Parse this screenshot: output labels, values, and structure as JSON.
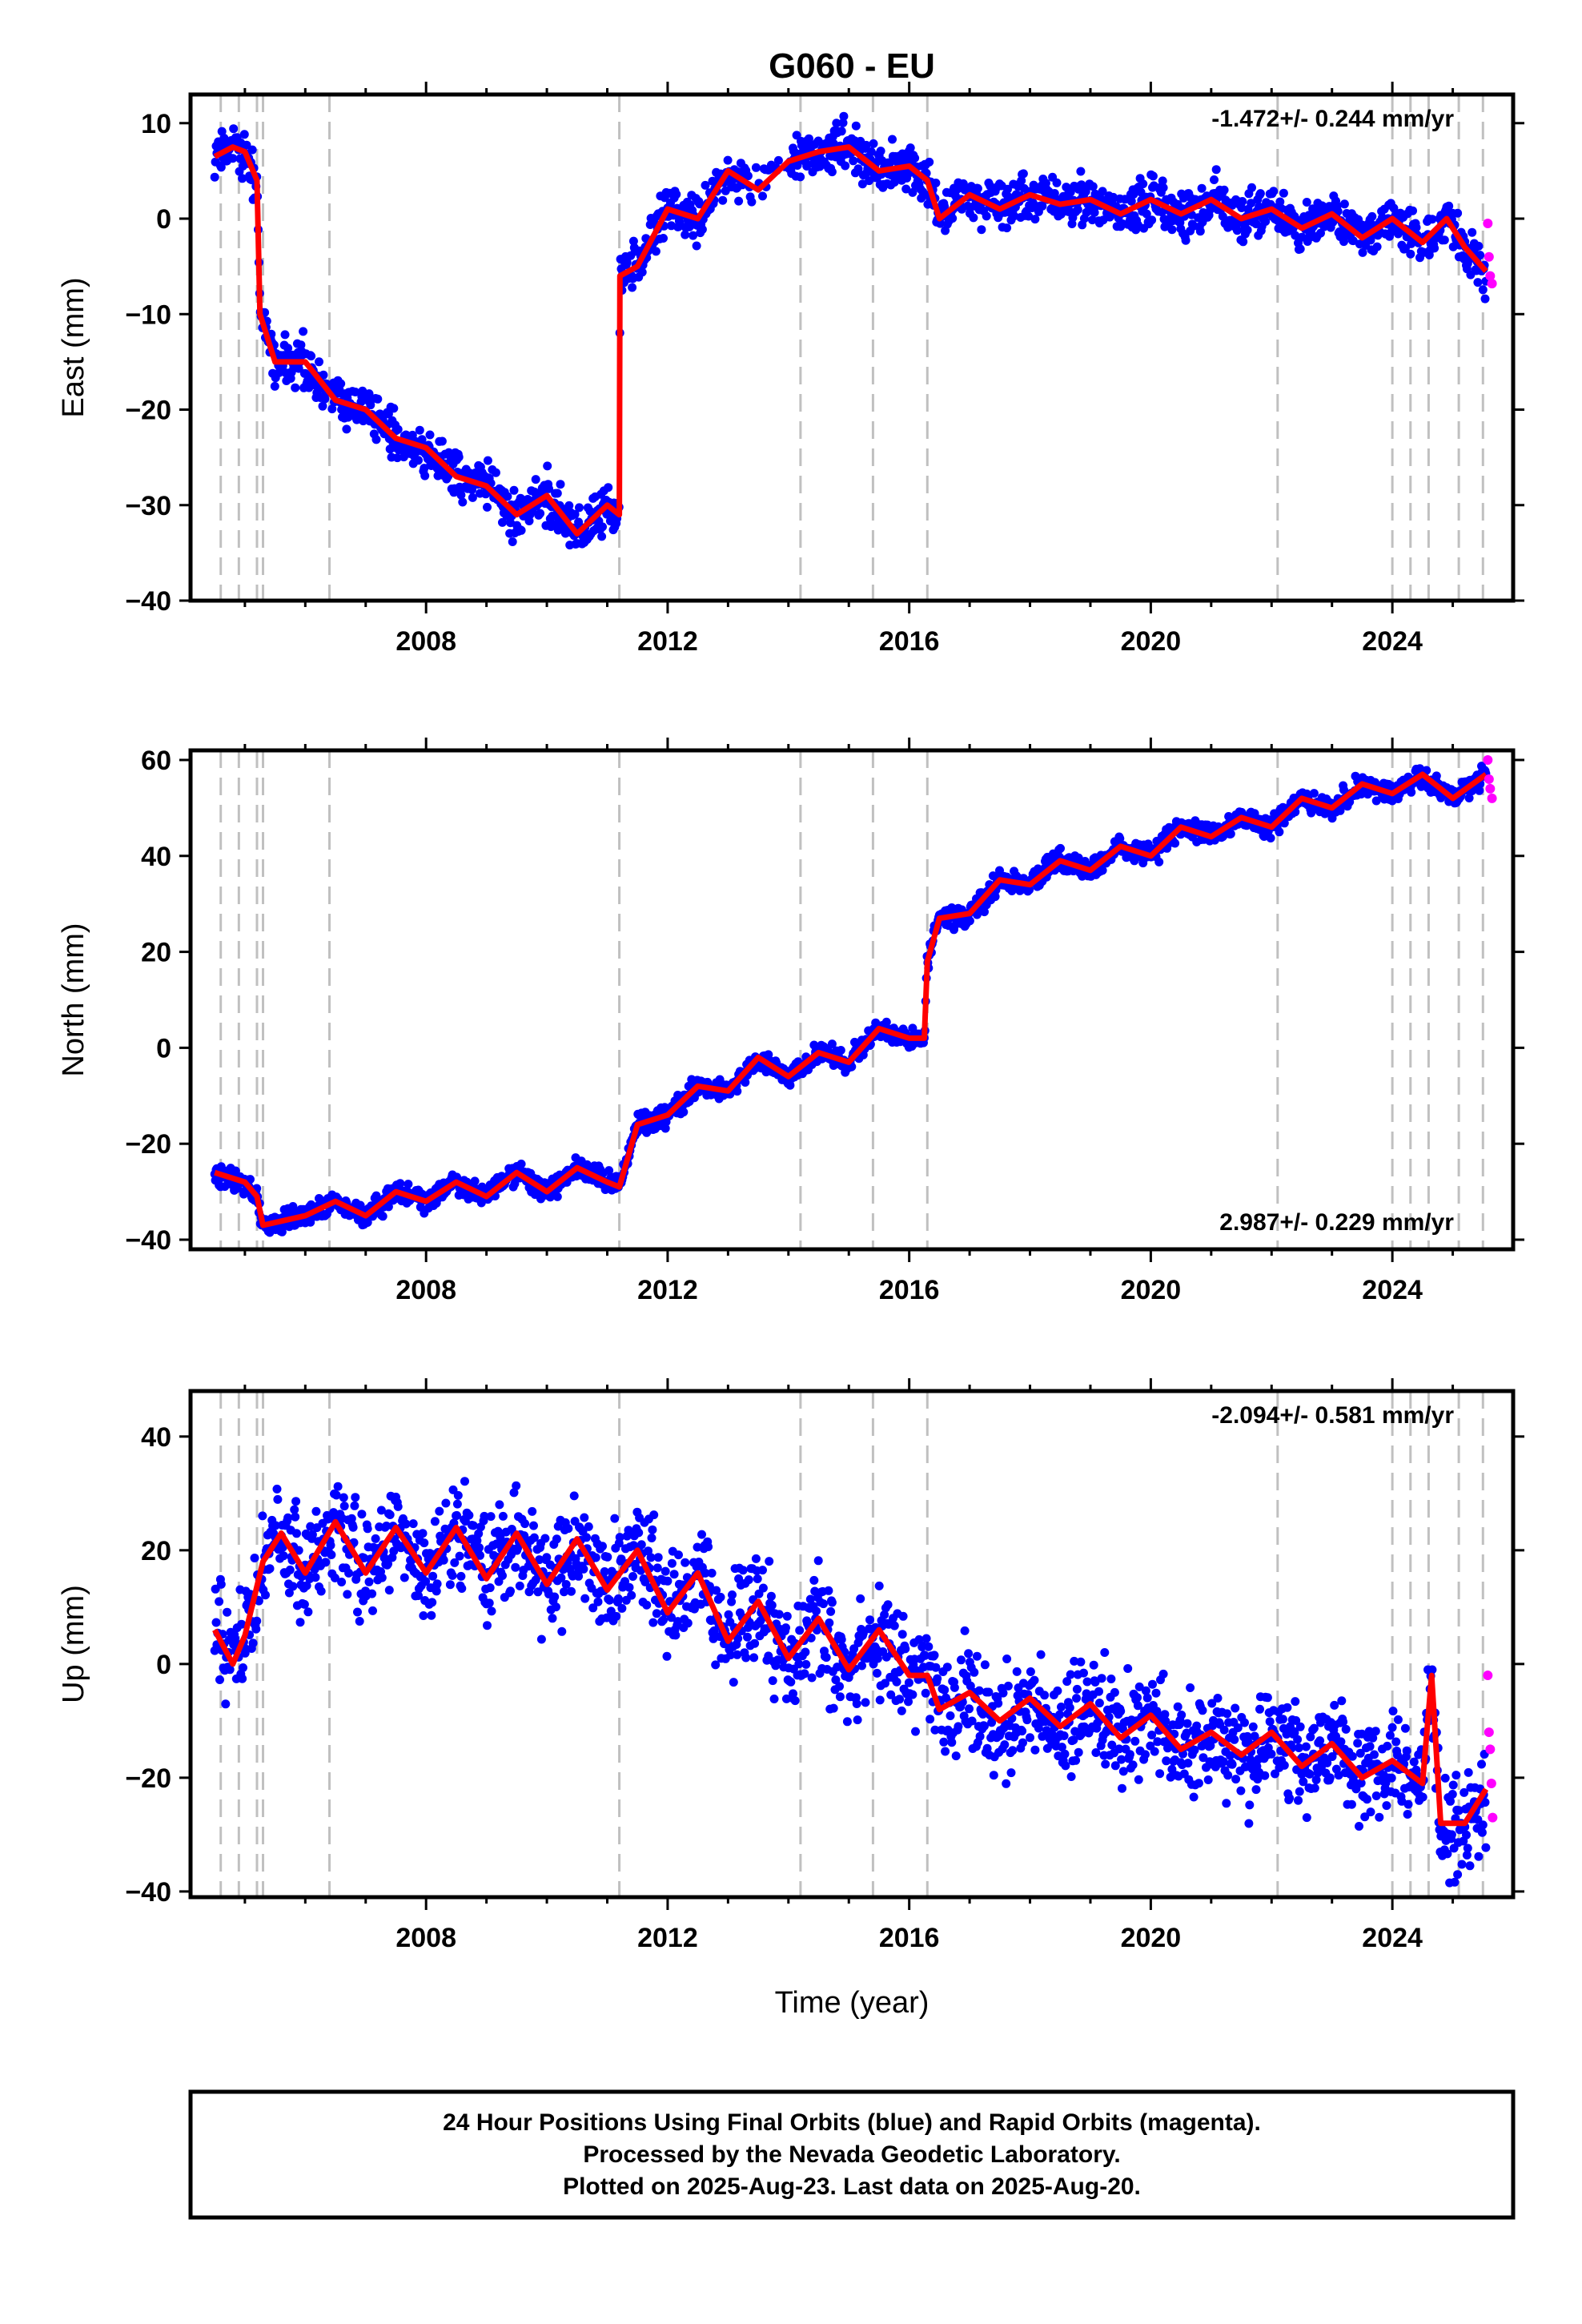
{
  "title": "G060 - EU",
  "xlabel": "Time (year)",
  "footer": {
    "line1": "24 Hour Positions Using Final Orbits (blue) and Rapid Orbits (magenta).",
    "line2": "Processed by the Nevada Geodetic Laboratory.",
    "line3": "Plotted on 2025-Aug-23. Last data on 2025-Aug-20."
  },
  "colors": {
    "final": "#0000ff",
    "rapid": "#ff00ff",
    "model": "#ff0000",
    "event": "#c0c0c0",
    "frame": "#000000"
  },
  "chart_data": [
    {
      "type": "scatter",
      "component": "east",
      "ylabel": "East (mm)",
      "rate": "-1.472+/- 0.244 mm/yr",
      "rate_position": "top-right",
      "xlim": [
        2004.1,
        2026.0
      ],
      "ylim": [
        -40,
        13
      ],
      "xticks": [
        2008,
        2012,
        2016,
        2020,
        2024
      ],
      "yticks": [
        -40,
        -30,
        -20,
        -10,
        0,
        10
      ],
      "grid": false,
      "event_lines": [
        2004.6,
        2004.9,
        2005.2,
        2005.3,
        2006.4,
        2011.2,
        2014.2,
        2015.4,
        2016.3,
        2022.1,
        2024.0,
        2024.3,
        2024.6,
        2025.1,
        2025.5
      ],
      "model": {
        "x": [
          2004.5,
          2004.8,
          2005.0,
          2005.2,
          2005.25,
          2005.5,
          2006.0,
          2006.5,
          2007.0,
          2007.5,
          2008.0,
          2008.5,
          2009.0,
          2009.5,
          2010.0,
          2010.5,
          2011.0,
          2011.2,
          2011.21,
          2011.5,
          2012.0,
          2012.5,
          2013.0,
          2013.5,
          2014.0,
          2014.5,
          2015.0,
          2015.5,
          2016.0,
          2016.3,
          2016.5,
          2017.0,
          2017.5,
          2018.0,
          2018.5,
          2019.0,
          2019.5,
          2020.0,
          2020.5,
          2021.0,
          2021.5,
          2022.0,
          2022.5,
          2023.0,
          2023.5,
          2024.0,
          2024.5,
          2024.9,
          2025.2,
          2025.55
        ],
        "y": [
          6.5,
          7.5,
          7.0,
          4.0,
          -10.0,
          -15.0,
          -15.0,
          -19.0,
          -20.0,
          -23.0,
          -24.0,
          -27.0,
          -28.0,
          -31.0,
          -29.0,
          -33.0,
          -30.0,
          -31.0,
          -6.0,
          -5.0,
          1.0,
          0.0,
          5.0,
          3.0,
          6.0,
          7.0,
          7.5,
          5.0,
          5.5,
          4.0,
          0.0,
          2.5,
          1.0,
          2.5,
          1.5,
          2.0,
          0.5,
          2.0,
          0.5,
          2.0,
          0.0,
          1.0,
          -1.0,
          0.5,
          -2.0,
          0.0,
          -2.5,
          0.0,
          -3.0,
          -5.5
        ]
      },
      "rapid": {
        "x": [
          2025.58,
          2025.6,
          2025.62,
          2025.65
        ],
        "y": [
          -0.5,
          -4.0,
          -6.0,
          -6.8
        ]
      }
    },
    {
      "type": "scatter",
      "component": "north",
      "ylabel": "North (mm)",
      "rate": "2.987+/- 0.229 mm/yr",
      "rate_position": "bottom-right",
      "xlim": [
        2004.1,
        2026.0
      ],
      "ylim": [
        -42,
        62
      ],
      "xticks": [
        2008,
        2012,
        2016,
        2020,
        2024
      ],
      "yticks": [
        -40,
        -20,
        0,
        20,
        40,
        60
      ],
      "grid": false,
      "event_lines": [
        2004.6,
        2004.9,
        2005.2,
        2005.3,
        2006.4,
        2011.2,
        2014.2,
        2015.4,
        2016.3,
        2022.1,
        2024.0,
        2024.3,
        2024.6,
        2025.1,
        2025.5
      ],
      "model": {
        "x": [
          2004.5,
          2005.0,
          2005.2,
          2005.3,
          2006.0,
          2006.5,
          2007.0,
          2007.5,
          2008.0,
          2008.5,
          2009.0,
          2009.5,
          2010.0,
          2010.5,
          2011.0,
          2011.2,
          2011.5,
          2012.0,
          2012.5,
          2013.0,
          2013.5,
          2014.0,
          2014.5,
          2015.0,
          2015.5,
          2016.0,
          2016.25,
          2016.3,
          2016.5,
          2017.0,
          2017.5,
          2018.0,
          2018.5,
          2019.0,
          2019.5,
          2020.0,
          2020.5,
          2021.0,
          2021.5,
          2022.0,
          2022.5,
          2023.0,
          2023.5,
          2024.0,
          2024.5,
          2025.0,
          2025.55
        ],
        "y": [
          -26,
          -28,
          -31,
          -37,
          -35,
          -32,
          -35,
          -30,
          -32,
          -28,
          -31,
          -26,
          -30,
          -25,
          -28,
          -29,
          -16,
          -14,
          -8,
          -9,
          -2,
          -6,
          -1,
          -3,
          4,
          2,
          2,
          18,
          27,
          28,
          35,
          34,
          39,
          37,
          42,
          40,
          46,
          44,
          48,
          46,
          52,
          50,
          55,
          53,
          57,
          52,
          57
        ]
      },
      "rapid": {
        "x": [
          2025.58,
          2025.6,
          2025.62,
          2025.65
        ],
        "y": [
          60,
          56,
          54,
          52
        ]
      }
    },
    {
      "type": "scatter",
      "component": "up",
      "ylabel": "Up (mm)",
      "rate": "-2.094+/- 0.581 mm/yr",
      "rate_position": "top-right",
      "xlim": [
        2004.1,
        2026.0
      ],
      "ylim": [
        -41,
        48
      ],
      "xticks": [
        2008,
        2012,
        2016,
        2020,
        2024
      ],
      "yticks": [
        -40,
        -20,
        0,
        20,
        40
      ],
      "grid": false,
      "event_lines": [
        2004.6,
        2004.9,
        2005.2,
        2005.3,
        2006.4,
        2011.2,
        2014.2,
        2015.4,
        2016.3,
        2022.1,
        2024.0,
        2024.3,
        2024.6,
        2025.1,
        2025.5
      ],
      "model": {
        "x": [
          2004.5,
          2004.8,
          2005.0,
          2005.3,
          2005.6,
          2006.0,
          2006.5,
          2007.0,
          2007.5,
          2008.0,
          2008.5,
          2009.0,
          2009.5,
          2010.0,
          2010.5,
          2011.0,
          2011.5,
          2012.0,
          2012.5,
          2013.0,
          2013.5,
          2014.0,
          2014.5,
          2015.0,
          2015.5,
          2016.0,
          2016.3,
          2016.5,
          2017.0,
          2017.5,
          2018.0,
          2018.5,
          2019.0,
          2019.5,
          2020.0,
          2020.5,
          2021.0,
          2021.5,
          2022.0,
          2022.5,
          2023.0,
          2023.5,
          2024.0,
          2024.5,
          2024.65,
          2024.8,
          2025.2,
          2025.55
        ],
        "y": [
          6,
          0,
          5,
          18,
          23,
          16,
          25,
          16,
          24,
          16,
          24,
          15,
          23,
          14,
          22,
          13,
          20,
          9,
          16,
          4,
          11,
          1,
          8,
          -1,
          6,
          -2,
          -2,
          -8,
          -5,
          -10,
          -6,
          -11,
          -7,
          -13,
          -9,
          -15,
          -12,
          -16,
          -12,
          -18,
          -14,
          -20,
          -17,
          -21,
          -2,
          -28,
          -28,
          -22
        ]
      },
      "rapid": {
        "x": [
          2025.58,
          2025.6,
          2025.62,
          2025.64,
          2025.66
        ],
        "y": [
          -2,
          -12,
          -15,
          -21,
          -27
        ]
      }
    }
  ]
}
